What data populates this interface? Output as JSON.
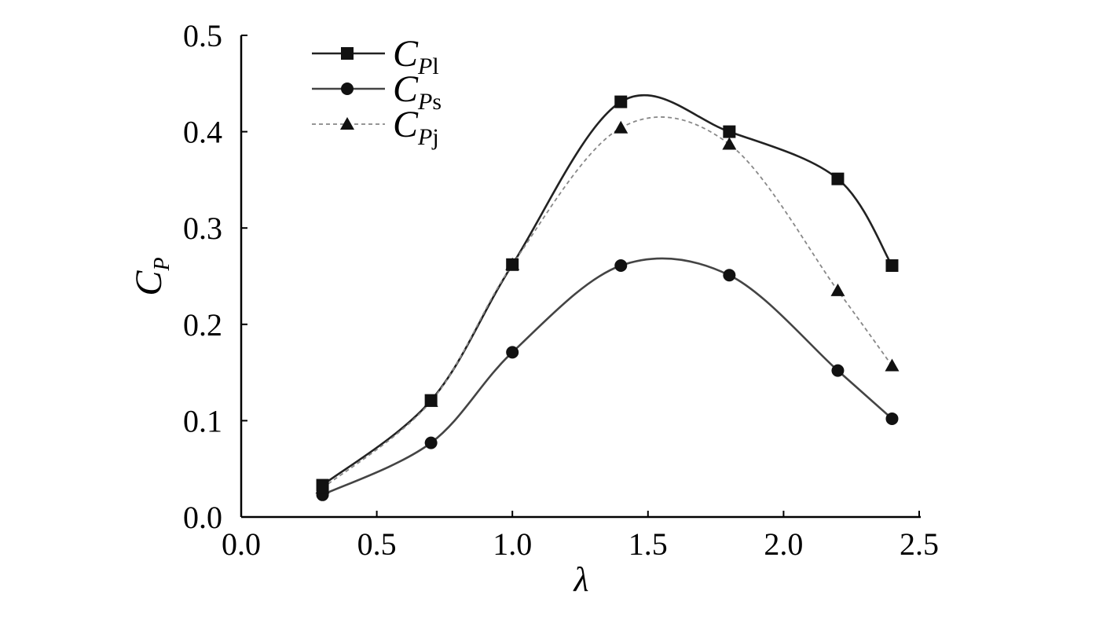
{
  "chart_data": {
    "type": "line",
    "title": "",
    "xlabel": "λ",
    "ylabel": {
      "main": "C",
      "sub": "P"
    },
    "xlim": [
      0.0,
      2.5
    ],
    "ylim": [
      0.0,
      0.5
    ],
    "xticks": [
      "0.0",
      "0.5",
      "1.0",
      "1.5",
      "2.0",
      "2.5"
    ],
    "yticks": [
      "0.0",
      "0.1",
      "0.2",
      "0.3",
      "0.4",
      "0.5"
    ],
    "grid": false,
    "legend_position": "top-left",
    "x": [
      0.3,
      0.7,
      1.0,
      1.4,
      1.8,
      2.2,
      2.4
    ],
    "series": [
      {
        "name": "C_Pl",
        "label": {
          "main": "C",
          "sub_italic": "P",
          "sub": "l"
        },
        "marker": "square",
        "style": "solid",
        "color": "#222222",
        "values": [
          0.033,
          0.121,
          0.262,
          0.431,
          0.4,
          0.351,
          0.261
        ]
      },
      {
        "name": "C_Ps",
        "label": {
          "main": "C",
          "sub_italic": "P",
          "sub": "s"
        },
        "marker": "circle",
        "style": "solid",
        "color": "#444444",
        "values": [
          0.023,
          0.077,
          0.171,
          0.261,
          0.251,
          0.152,
          0.102
        ]
      },
      {
        "name": "C_Pj",
        "label": {
          "main": "C",
          "sub_italic": "P",
          "sub": "j"
        },
        "marker": "triangle",
        "style": "dashed",
        "color": "#888888",
        "values": [
          0.03,
          0.12,
          0.262,
          0.404,
          0.387,
          0.235,
          0.157
        ]
      }
    ]
  }
}
